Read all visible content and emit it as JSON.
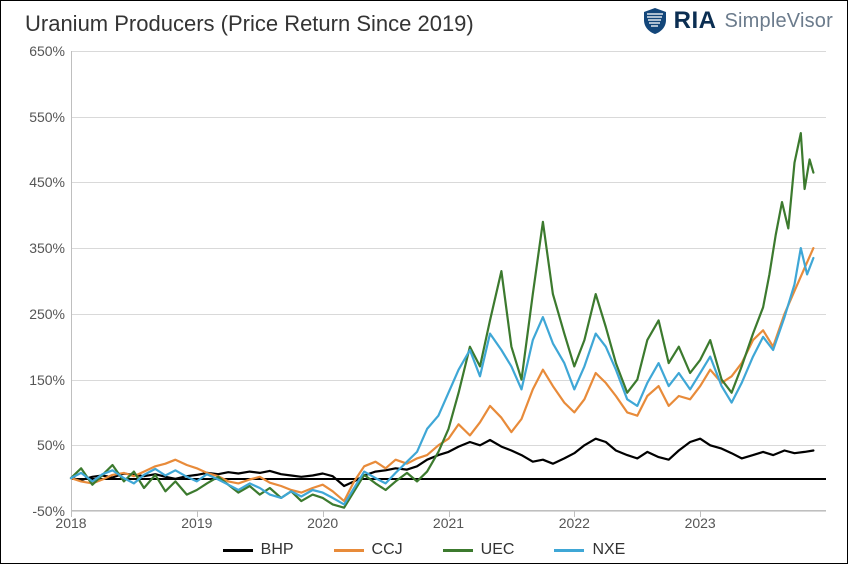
{
  "title": "Uranium Producers (Price Return Since 2019)",
  "brand": {
    "ria": "RIA",
    "simplevisor": "SimpleVisor"
  },
  "chart": {
    "type": "line",
    "x_range": [
      2018,
      2024
    ],
    "y_range": [
      -50,
      650
    ],
    "y_tick_step": 100,
    "y_tick_format_suffix": "%",
    "x_ticks": [
      2018,
      2019,
      2020,
      2021,
      2022,
      2023
    ],
    "zero_line_y": 0,
    "background_color": "#ffffff",
    "grid_color": "#d9d9d9",
    "axis_color": "#bfbfbf",
    "tick_label_color": "#555555",
    "tick_label_fontsize": 14,
    "title_fontsize": 22,
    "title_color": "#343434",
    "line_width": 2.2,
    "series": [
      {
        "name": "BHP",
        "color": "#000000",
        "data": [
          [
            2018.0,
            0
          ],
          [
            2018.08,
            -3
          ],
          [
            2018.17,
            2
          ],
          [
            2018.25,
            4
          ],
          [
            2018.33,
            1
          ],
          [
            2018.42,
            7
          ],
          [
            2018.5,
            5
          ],
          [
            2018.58,
            3
          ],
          [
            2018.67,
            6
          ],
          [
            2018.75,
            2
          ],
          [
            2018.83,
            -1
          ],
          [
            2018.92,
            3
          ],
          [
            2019.0,
            5
          ],
          [
            2019.08,
            8
          ],
          [
            2019.17,
            6
          ],
          [
            2019.25,
            9
          ],
          [
            2019.33,
            7
          ],
          [
            2019.42,
            10
          ],
          [
            2019.5,
            8
          ],
          [
            2019.58,
            11
          ],
          [
            2019.67,
            6
          ],
          [
            2019.75,
            4
          ],
          [
            2019.83,
            2
          ],
          [
            2019.92,
            4
          ],
          [
            2020.0,
            7
          ],
          [
            2020.08,
            3
          ],
          [
            2020.17,
            -12
          ],
          [
            2020.25,
            -5
          ],
          [
            2020.33,
            4
          ],
          [
            2020.42,
            10
          ],
          [
            2020.5,
            12
          ],
          [
            2020.58,
            15
          ],
          [
            2020.67,
            13
          ],
          [
            2020.75,
            18
          ],
          [
            2020.83,
            28
          ],
          [
            2020.92,
            35
          ],
          [
            2021.0,
            40
          ],
          [
            2021.08,
            48
          ],
          [
            2021.17,
            55
          ],
          [
            2021.25,
            50
          ],
          [
            2021.33,
            58
          ],
          [
            2021.42,
            48
          ],
          [
            2021.5,
            42
          ],
          [
            2021.58,
            35
          ],
          [
            2021.67,
            25
          ],
          [
            2021.75,
            28
          ],
          [
            2021.83,
            22
          ],
          [
            2021.92,
            30
          ],
          [
            2022.0,
            38
          ],
          [
            2022.08,
            50
          ],
          [
            2022.17,
            60
          ],
          [
            2022.25,
            55
          ],
          [
            2022.33,
            42
          ],
          [
            2022.42,
            35
          ],
          [
            2022.5,
            30
          ],
          [
            2022.58,
            40
          ],
          [
            2022.67,
            32
          ],
          [
            2022.75,
            28
          ],
          [
            2022.83,
            42
          ],
          [
            2022.92,
            55
          ],
          [
            2023.0,
            60
          ],
          [
            2023.08,
            50
          ],
          [
            2023.17,
            45
          ],
          [
            2023.25,
            38
          ],
          [
            2023.33,
            30
          ],
          [
            2023.42,
            35
          ],
          [
            2023.5,
            40
          ],
          [
            2023.58,
            35
          ],
          [
            2023.67,
            42
          ],
          [
            2023.75,
            38
          ],
          [
            2023.83,
            40
          ],
          [
            2023.9,
            42
          ]
        ]
      },
      {
        "name": "CCJ",
        "color": "#e88b3a",
        "data": [
          [
            2018.0,
            0
          ],
          [
            2018.08,
            -5
          ],
          [
            2018.17,
            -8
          ],
          [
            2018.25,
            -2
          ],
          [
            2018.33,
            5
          ],
          [
            2018.42,
            8
          ],
          [
            2018.5,
            3
          ],
          [
            2018.58,
            10
          ],
          [
            2018.67,
            18
          ],
          [
            2018.75,
            22
          ],
          [
            2018.83,
            28
          ],
          [
            2018.92,
            20
          ],
          [
            2019.0,
            15
          ],
          [
            2019.08,
            8
          ],
          [
            2019.17,
            3
          ],
          [
            2019.25,
            -5
          ],
          [
            2019.33,
            -8
          ],
          [
            2019.42,
            -2
          ],
          [
            2019.5,
            2
          ],
          [
            2019.58,
            -7
          ],
          [
            2019.67,
            -12
          ],
          [
            2019.75,
            -18
          ],
          [
            2019.83,
            -22
          ],
          [
            2019.92,
            -15
          ],
          [
            2020.0,
            -10
          ],
          [
            2020.08,
            -20
          ],
          [
            2020.17,
            -35
          ],
          [
            2020.25,
            -5
          ],
          [
            2020.33,
            18
          ],
          [
            2020.42,
            25
          ],
          [
            2020.5,
            15
          ],
          [
            2020.58,
            28
          ],
          [
            2020.67,
            22
          ],
          [
            2020.75,
            30
          ],
          [
            2020.83,
            35
          ],
          [
            2020.92,
            50
          ],
          [
            2021.0,
            60
          ],
          [
            2021.08,
            82
          ],
          [
            2021.17,
            65
          ],
          [
            2021.25,
            85
          ],
          [
            2021.33,
            110
          ],
          [
            2021.42,
            92
          ],
          [
            2021.5,
            70
          ],
          [
            2021.58,
            90
          ],
          [
            2021.67,
            135
          ],
          [
            2021.75,
            165
          ],
          [
            2021.83,
            140
          ],
          [
            2021.92,
            115
          ],
          [
            2022.0,
            100
          ],
          [
            2022.08,
            120
          ],
          [
            2022.17,
            160
          ],
          [
            2022.25,
            145
          ],
          [
            2022.33,
            125
          ],
          [
            2022.42,
            100
          ],
          [
            2022.5,
            95
          ],
          [
            2022.58,
            125
          ],
          [
            2022.67,
            140
          ],
          [
            2022.75,
            110
          ],
          [
            2022.83,
            125
          ],
          [
            2022.92,
            120
          ],
          [
            2023.0,
            140
          ],
          [
            2023.08,
            165
          ],
          [
            2023.17,
            145
          ],
          [
            2023.25,
            155
          ],
          [
            2023.33,
            175
          ],
          [
            2023.42,
            210
          ],
          [
            2023.5,
            225
          ],
          [
            2023.58,
            200
          ],
          [
            2023.67,
            250
          ],
          [
            2023.75,
            285
          ],
          [
            2023.83,
            320
          ],
          [
            2023.9,
            350
          ]
        ]
      },
      {
        "name": "UEC",
        "color": "#3c7a2e",
        "data": [
          [
            2018.0,
            0
          ],
          [
            2018.08,
            15
          ],
          [
            2018.17,
            -10
          ],
          [
            2018.25,
            5
          ],
          [
            2018.33,
            20
          ],
          [
            2018.42,
            -5
          ],
          [
            2018.5,
            10
          ],
          [
            2018.58,
            -15
          ],
          [
            2018.67,
            5
          ],
          [
            2018.75,
            -20
          ],
          [
            2018.83,
            -5
          ],
          [
            2018.92,
            -25
          ],
          [
            2019.0,
            -18
          ],
          [
            2019.08,
            -8
          ],
          [
            2019.17,
            2
          ],
          [
            2019.25,
            -10
          ],
          [
            2019.33,
            -22
          ],
          [
            2019.42,
            -12
          ],
          [
            2019.5,
            -25
          ],
          [
            2019.58,
            -15
          ],
          [
            2019.67,
            -30
          ],
          [
            2019.75,
            -20
          ],
          [
            2019.83,
            -35
          ],
          [
            2019.92,
            -25
          ],
          [
            2020.0,
            -30
          ],
          [
            2020.08,
            -40
          ],
          [
            2020.17,
            -45
          ],
          [
            2020.25,
            -20
          ],
          [
            2020.33,
            5
          ],
          [
            2020.42,
            -8
          ],
          [
            2020.5,
            -18
          ],
          [
            2020.58,
            -5
          ],
          [
            2020.67,
            8
          ],
          [
            2020.75,
            -5
          ],
          [
            2020.83,
            10
          ],
          [
            2020.92,
            40
          ],
          [
            2021.0,
            75
          ],
          [
            2021.08,
            130
          ],
          [
            2021.17,
            200
          ],
          [
            2021.25,
            170
          ],
          [
            2021.33,
            240
          ],
          [
            2021.42,
            315
          ],
          [
            2021.5,
            200
          ],
          [
            2021.58,
            150
          ],
          [
            2021.67,
            280
          ],
          [
            2021.75,
            390
          ],
          [
            2021.83,
            280
          ],
          [
            2021.92,
            220
          ],
          [
            2022.0,
            170
          ],
          [
            2022.08,
            210
          ],
          [
            2022.17,
            280
          ],
          [
            2022.25,
            230
          ],
          [
            2022.33,
            175
          ],
          [
            2022.42,
            130
          ],
          [
            2022.5,
            150
          ],
          [
            2022.58,
            210
          ],
          [
            2022.67,
            240
          ],
          [
            2022.75,
            175
          ],
          [
            2022.83,
            200
          ],
          [
            2022.92,
            160
          ],
          [
            2023.0,
            180
          ],
          [
            2023.08,
            210
          ],
          [
            2023.17,
            150
          ],
          [
            2023.25,
            130
          ],
          [
            2023.33,
            170
          ],
          [
            2023.42,
            220
          ],
          [
            2023.5,
            260
          ],
          [
            2023.55,
            310
          ],
          [
            2023.6,
            370
          ],
          [
            2023.65,
            420
          ],
          [
            2023.7,
            380
          ],
          [
            2023.75,
            480
          ],
          [
            2023.8,
            525
          ],
          [
            2023.83,
            440
          ],
          [
            2023.87,
            485
          ],
          [
            2023.9,
            465
          ]
        ]
      },
      {
        "name": "NXE",
        "color": "#3fa7d6",
        "data": [
          [
            2018.0,
            0
          ],
          [
            2018.08,
            8
          ],
          [
            2018.17,
            -5
          ],
          [
            2018.25,
            6
          ],
          [
            2018.33,
            12
          ],
          [
            2018.42,
            0
          ],
          [
            2018.5,
            -8
          ],
          [
            2018.58,
            5
          ],
          [
            2018.67,
            14
          ],
          [
            2018.75,
            4
          ],
          [
            2018.83,
            12
          ],
          [
            2018.92,
            2
          ],
          [
            2019.0,
            -5
          ],
          [
            2019.08,
            6
          ],
          [
            2019.17,
            -2
          ],
          [
            2019.25,
            -10
          ],
          [
            2019.33,
            -18
          ],
          [
            2019.42,
            -8
          ],
          [
            2019.5,
            -15
          ],
          [
            2019.58,
            -25
          ],
          [
            2019.67,
            -30
          ],
          [
            2019.75,
            -20
          ],
          [
            2019.83,
            -28
          ],
          [
            2019.92,
            -18
          ],
          [
            2020.0,
            -22
          ],
          [
            2020.08,
            -30
          ],
          [
            2020.17,
            -40
          ],
          [
            2020.25,
            -15
          ],
          [
            2020.33,
            10
          ],
          [
            2020.42,
            0
          ],
          [
            2020.5,
            -8
          ],
          [
            2020.58,
            8
          ],
          [
            2020.67,
            25
          ],
          [
            2020.75,
            40
          ],
          [
            2020.83,
            75
          ],
          [
            2020.92,
            95
          ],
          [
            2021.0,
            130
          ],
          [
            2021.08,
            165
          ],
          [
            2021.17,
            195
          ],
          [
            2021.25,
            155
          ],
          [
            2021.33,
            220
          ],
          [
            2021.42,
            195
          ],
          [
            2021.5,
            170
          ],
          [
            2021.58,
            135
          ],
          [
            2021.67,
            210
          ],
          [
            2021.75,
            245
          ],
          [
            2021.83,
            205
          ],
          [
            2021.92,
            175
          ],
          [
            2022.0,
            135
          ],
          [
            2022.08,
            170
          ],
          [
            2022.17,
            220
          ],
          [
            2022.25,
            200
          ],
          [
            2022.33,
            165
          ],
          [
            2022.42,
            120
          ],
          [
            2022.5,
            110
          ],
          [
            2022.58,
            145
          ],
          [
            2022.67,
            175
          ],
          [
            2022.75,
            140
          ],
          [
            2022.83,
            160
          ],
          [
            2022.92,
            135
          ],
          [
            2023.0,
            160
          ],
          [
            2023.08,
            185
          ],
          [
            2023.17,
            140
          ],
          [
            2023.25,
            115
          ],
          [
            2023.33,
            145
          ],
          [
            2023.42,
            185
          ],
          [
            2023.5,
            215
          ],
          [
            2023.58,
            195
          ],
          [
            2023.67,
            245
          ],
          [
            2023.75,
            295
          ],
          [
            2023.8,
            350
          ],
          [
            2023.85,
            310
          ],
          [
            2023.9,
            335
          ]
        ]
      }
    ],
    "legend": [
      {
        "label": "BHP",
        "color": "#000000"
      },
      {
        "label": "CCJ",
        "color": "#e88b3a"
      },
      {
        "label": "UEC",
        "color": "#3c7a2e"
      },
      {
        "label": "NXE",
        "color": "#3fa7d6"
      }
    ]
  }
}
